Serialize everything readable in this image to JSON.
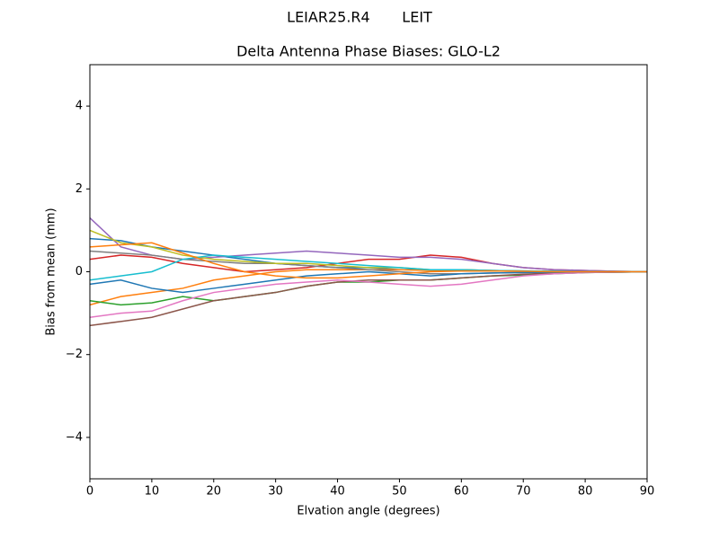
{
  "chart_data": {
    "type": "line",
    "suptitle": "LEIAR25.R4       LEIT",
    "title": "Delta Antenna Phase Biases: GLO-L2",
    "x_label": "Elvation angle (degrees)",
    "y_label": "Bias from mean (mm)",
    "x": [
      0,
      5,
      10,
      15,
      20,
      25,
      30,
      35,
      40,
      45,
      50,
      55,
      60,
      65,
      70,
      75,
      80,
      85,
      90
    ],
    "xlim": [
      0,
      90
    ],
    "xticks": [
      0,
      10,
      20,
      30,
      40,
      50,
      60,
      70,
      80,
      90
    ],
    "ylim": [
      -5,
      5
    ],
    "yticks": [
      {
        "value": -4,
        "label": "−4"
      },
      {
        "value": -2,
        "label": "−2"
      },
      0,
      2,
      4
    ],
    "series": [
      {
        "color": "#1f77b4",
        "values": [
          0.8,
          0.75,
          0.6,
          0.5,
          0.4,
          0.3,
          0.2,
          0.15,
          0.1,
          0.1,
          0.05,
          0.05,
          0.05,
          0.03,
          0.02,
          0.01,
          0.01,
          0,
          0
        ]
      },
      {
        "color": "#ff7f0e",
        "values": [
          -0.8,
          -0.6,
          -0.5,
          -0.4,
          -0.2,
          -0.1,
          0,
          0.05,
          0.05,
          0.05,
          0.05,
          0.03,
          0.02,
          0.02,
          0.01,
          0.01,
          0,
          0,
          0
        ]
      },
      {
        "color": "#2ca02c",
        "values": [
          -0.7,
          -0.8,
          -0.75,
          -0.6,
          -0.7,
          -0.6,
          -0.5,
          -0.35,
          -0.25,
          -0.25,
          -0.2,
          -0.2,
          -0.15,
          -0.1,
          -0.08,
          -0.05,
          -0.02,
          -0.01,
          0
        ]
      },
      {
        "color": "#d62728",
        "values": [
          0.3,
          0.4,
          0.35,
          0.2,
          0.1,
          0,
          0.05,
          0.1,
          0.2,
          0.3,
          0.3,
          0.4,
          0.35,
          0.2,
          0.1,
          0.05,
          0.03,
          0.01,
          0
        ]
      },
      {
        "color": "#9467bd",
        "values": [
          1.3,
          0.6,
          0.4,
          0.3,
          0.35,
          0.4,
          0.45,
          0.5,
          0.45,
          0.4,
          0.35,
          0.35,
          0.3,
          0.2,
          0.1,
          0.05,
          0.03,
          0.01,
          0
        ]
      },
      {
        "color": "#8c564b",
        "values": [
          -1.3,
          -1.2,
          -1.1,
          -0.9,
          -0.7,
          -0.6,
          -0.5,
          -0.35,
          -0.25,
          -0.2,
          -0.2,
          -0.2,
          -0.15,
          -0.1,
          -0.06,
          -0.03,
          -0.02,
          -0.01,
          0
        ]
      },
      {
        "color": "#e377c2",
        "values": [
          -1.1,
          -1,
          -0.95,
          -0.7,
          -0.5,
          -0.4,
          -0.3,
          -0.25,
          -0.2,
          -0.25,
          -0.3,
          -0.35,
          -0.3,
          -0.2,
          -0.1,
          -0.05,
          -0.02,
          -0.01,
          0
        ]
      },
      {
        "color": "#7f7f7f",
        "values": [
          0.5,
          0.45,
          0.4,
          0.3,
          0.25,
          0.2,
          0.2,
          0.15,
          0.1,
          0.05,
          0,
          -0.05,
          -0.05,
          -0.03,
          -0.02,
          -0.01,
          0,
          0,
          0
        ]
      },
      {
        "color": "#bcbd22",
        "values": [
          1.0,
          0.7,
          0.6,
          0.4,
          0.3,
          0.25,
          0.2,
          0.2,
          0.15,
          0.1,
          0.1,
          0.05,
          0.05,
          0.03,
          0.02,
          0.01,
          0,
          0,
          0
        ]
      },
      {
        "color": "#17becf",
        "values": [
          -0.2,
          -0.1,
          0,
          0.3,
          0.4,
          0.35,
          0.3,
          0.25,
          0.2,
          0.15,
          0.1,
          0.05,
          0.05,
          0.03,
          0.02,
          0.01,
          0,
          0,
          0
        ]
      },
      {
        "color": "#1f77b4",
        "values": [
          -0.3,
          -0.2,
          -0.4,
          -0.5,
          -0.4,
          -0.3,
          -0.2,
          -0.1,
          -0.05,
          0,
          -0.05,
          -0.1,
          -0.05,
          -0.03,
          -0.02,
          -0.01,
          0,
          0,
          0
        ]
      },
      {
        "color": "#ff7f0e",
        "values": [
          0.6,
          0.65,
          0.7,
          0.45,
          0.2,
          0,
          -0.1,
          -0.15,
          -0.15,
          -0.1,
          -0.05,
          0,
          0.02,
          0.02,
          0.01,
          0,
          0,
          0,
          0
        ]
      }
    ]
  }
}
